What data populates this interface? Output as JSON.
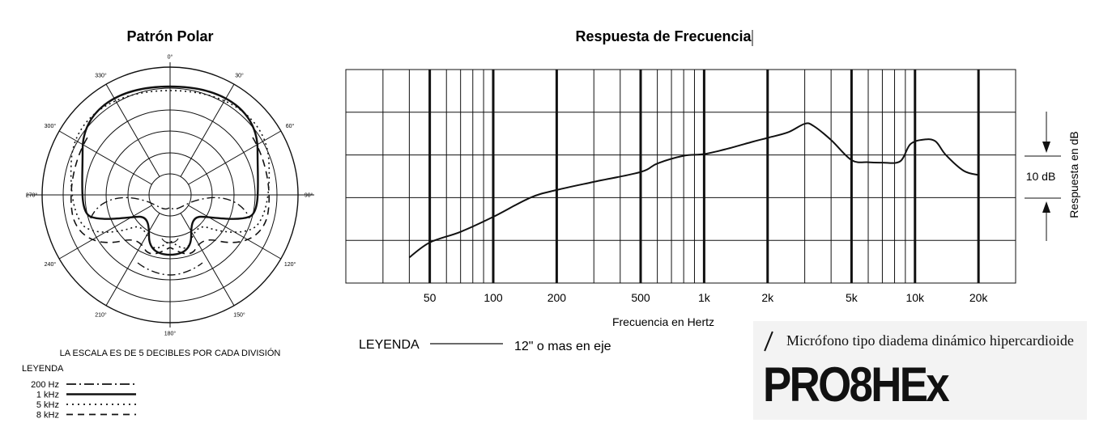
{
  "chart_data": [
    {
      "type": "polar",
      "title": "Patrón Polar",
      "angle_labels": [
        "0°",
        "30°",
        "60°",
        "90°",
        "120°",
        "150°",
        "180°",
        "210°",
        "240°",
        "270°",
        "300°",
        "330°"
      ],
      "scale_note": "LA ESCALA ES DE 5 DECIBLES POR CADA DIVISIÓN",
      "legend_title": "LEYENDA",
      "series": [
        {
          "name": "200 Hz",
          "style": "dashdot"
        },
        {
          "name": "1 kHz",
          "style": "solid"
        },
        {
          "name": "5 kHz",
          "style": "dotted"
        },
        {
          "name": "8 kHz",
          "style": "dashed"
        }
      ],
      "rings": 5,
      "pattern": "hipercardioide"
    },
    {
      "type": "line",
      "title": "Respuesta de Frecuencia",
      "xlabel": "Frecuencia en Hertz",
      "ylabel": "Respuesta en dB",
      "xscale": "log",
      "xlim": [
        20,
        30000
      ],
      "x_tick_labels": [
        {
          "value": 50,
          "label": "50"
        },
        {
          "value": 100,
          "label": "100"
        },
        {
          "value": 200,
          "label": "200"
        },
        {
          "value": 500,
          "label": "500"
        },
        {
          "value": 1000,
          "label": "1k"
        },
        {
          "value": 2000,
          "label": "2k"
        },
        {
          "value": 5000,
          "label": "5k"
        },
        {
          "value": 10000,
          "label": "10k"
        },
        {
          "value": 20000,
          "label": "20k"
        }
      ],
      "ylim": [
        0,
        50
      ],
      "y_grid_step": 10,
      "scale_label": "10 dB",
      "legend_title": "LEYENDA",
      "series": [
        {
          "name": "12\" o mas en eje",
          "x": [
            40,
            50,
            70,
            100,
            150,
            200,
            300,
            500,
            600,
            800,
            1000,
            1300,
            1700,
            2000,
            2500,
            3000,
            3300,
            4000,
            5000,
            6000,
            7000,
            8500,
            9500,
            11000,
            12500,
            14000,
            17000,
            20000
          ],
          "y": [
            6,
            9.5,
            12,
            15.5,
            20,
            21.8,
            23.7,
            26,
            28,
            29.8,
            30.2,
            31.5,
            33.1,
            34,
            35.3,
            37.3,
            36.8,
            33.5,
            28.8,
            28.3,
            28.2,
            28.5,
            32.5,
            33.6,
            33.2,
            30,
            26.3,
            25.3
          ]
        }
      ],
      "grid": true
    }
  ],
  "brand": {
    "subtitle": "Micrófono tipo diadema dinámico hipercardioide",
    "model": "PRO8HEx"
  }
}
